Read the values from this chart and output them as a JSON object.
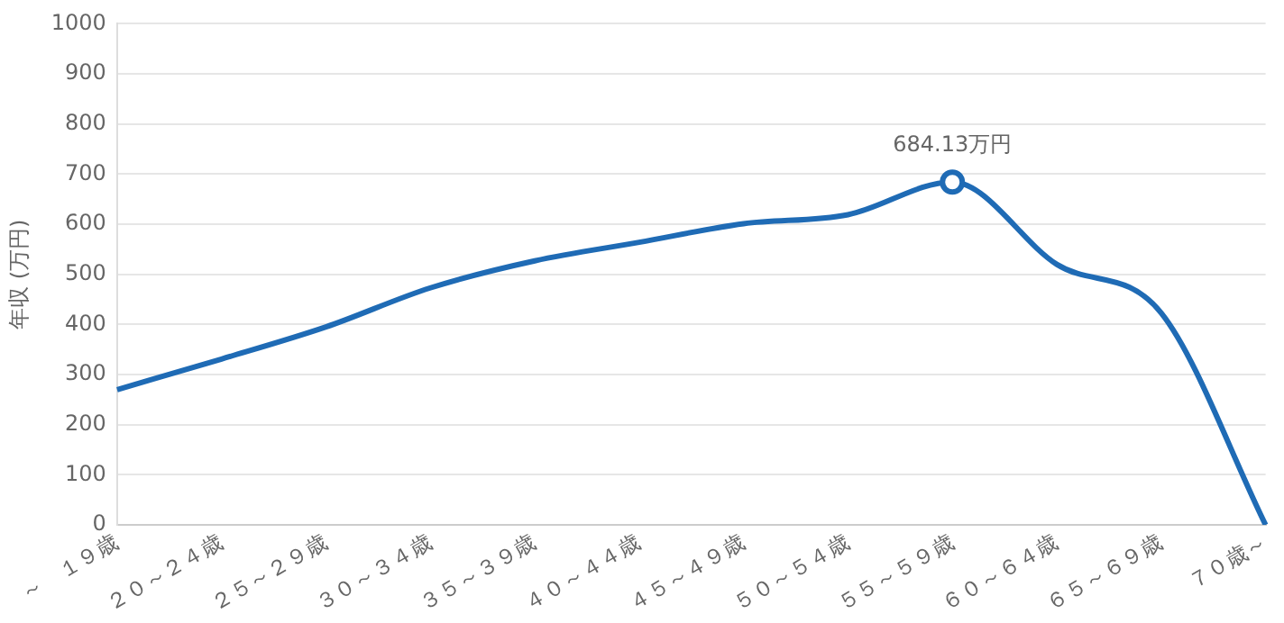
{
  "chart_data": {
    "type": "line",
    "ylabel": "年収 (万円)",
    "categories": [
      "～　１９歳",
      "２０～２４歳",
      "２５～２９歳",
      "３０～３４歳",
      "３５～３９歳",
      "４０～４４歳",
      "４５～４９歳",
      "５０～５４歳",
      "５５～５９歳",
      "６０～６４歳",
      "６５～６９歳",
      "７０歳～"
    ],
    "series": [
      {
        "color": "#1f6bb5",
        "values": [
          270,
          331,
          395,
          473,
          527,
          564,
          601,
          619,
          684.13,
          520,
          423,
          0
        ]
      }
    ],
    "ylim": [
      0,
      1000
    ],
    "yticks": [
      0,
      100,
      200,
      300,
      400,
      500,
      600,
      700,
      800,
      900,
      1000
    ],
    "grid": "y",
    "legend": false,
    "marker": "none",
    "line_style": "solid",
    "annotations": [
      {
        "text": "684.13万円",
        "x": "５５～５９歳",
        "y": 684.13
      }
    ]
  }
}
